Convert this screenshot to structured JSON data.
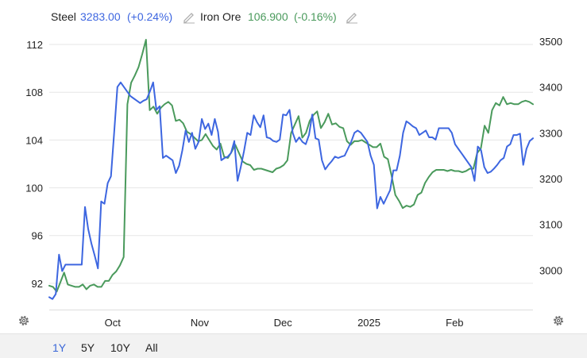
{
  "legend": {
    "steel": {
      "name": "Steel",
      "value": "3283.00",
      "change": "(+0.24%)",
      "color": "#3d66e0"
    },
    "iron_ore": {
      "name": "Iron Ore",
      "value": "106.900",
      "change": "(-0.16%)",
      "color": "#4a9a5c"
    },
    "edit_icon": "pencil-icon"
  },
  "range_buttons": [
    "1Y",
    "5Y",
    "10Y",
    "All"
  ],
  "active_range": "1Y",
  "settings_icon": "gear-icon",
  "chart_data": {
    "type": "line",
    "title": "",
    "xlabel": "",
    "x_ticks": [
      "Oct",
      "Nov",
      "Dec",
      "2025",
      "Feb"
    ],
    "left_axis": {
      "ticks": [
        92,
        96,
        100,
        104,
        108,
        112
      ],
      "range": [
        89.8,
        113.2
      ]
    },
    "right_axis": {
      "ticks": [
        3000,
        3100,
        3200,
        3300,
        3400,
        3500
      ],
      "range": [
        2914,
        3524
      ]
    },
    "grid": true,
    "series": [
      {
        "name": "Steel",
        "axis": "right",
        "color": "#3d66e0",
        "values": [
          2941,
          2937,
          2948,
          3034,
          2998,
          3012,
          3012,
          3012,
          3012,
          3012,
          3012,
          3138,
          3090,
          3058,
          3032,
          3004,
          3150,
          3145,
          3190,
          3205,
          3300,
          3400,
          3410,
          3400,
          3390,
          3380,
          3375,
          3370,
          3365,
          3370,
          3373,
          3390,
          3410,
          3350,
          3358,
          3245,
          3250,
          3245,
          3240,
          3212,
          3228,
          3262,
          3305,
          3280,
          3300,
          3265,
          3280,
          3330,
          3308,
          3320,
          3295,
          3330,
          3302,
          3240,
          3245,
          3248,
          3256,
          3282,
          3195,
          3225,
          3260,
          3300,
          3295,
          3338,
          3323,
          3312,
          3338,
          3290,
          3288,
          3282,
          3280,
          3285,
          3340,
          3338,
          3350,
          3300,
          3280,
          3290,
          3280,
          3275,
          3295,
          3340,
          3288,
          3285,
          3240,
          3220,
          3230,
          3238,
          3248,
          3245,
          3248,
          3250,
          3265,
          3280,
          3300,
          3305,
          3300,
          3290,
          3280,
          3250,
          3230,
          3135,
          3160,
          3145,
          3160,
          3175,
          3218,
          3218,
          3250,
          3300,
          3325,
          3320,
          3314,
          3310,
          3295,
          3300,
          3305,
          3290,
          3290,
          3285,
          3310,
          3310,
          3310,
          3310,
          3300,
          3275,
          3265,
          3255,
          3245,
          3235,
          3225,
          3195,
          3270,
          3262,
          3225,
          3212,
          3215,
          3222,
          3230,
          3240,
          3245,
          3270,
          3275,
          3295,
          3295,
          3298,
          3230,
          3265,
          3282,
          3288
        ]
      },
      {
        "name": "Iron Ore",
        "axis": "left",
        "color": "#4a9a5c",
        "values": [
          91.8,
          91.7,
          91.3,
          92.1,
          92.9,
          91.9,
          91.8,
          91.7,
          91.7,
          91.9,
          91.5,
          91.8,
          91.9,
          91.7,
          91.7,
          92.2,
          92.2,
          92.7,
          93.0,
          93.5,
          94.2,
          107.0,
          108.8,
          109.4,
          110.1,
          111.2,
          112.4,
          106.5,
          106.8,
          106.2,
          106.7,
          107.0,
          107.2,
          106.9,
          105.6,
          105.7,
          105.4,
          104.7,
          104.5,
          104.2,
          103.9,
          104.0,
          104.5,
          104.0,
          103.5,
          103.2,
          103.7,
          102.6,
          102.5,
          103.0,
          103.6,
          102.9,
          102.2,
          102.0,
          101.9,
          101.5,
          101.6,
          101.6,
          101.5,
          101.4,
          101.3,
          101.6,
          101.7,
          101.9,
          102.3,
          104.6,
          105.3,
          106.0,
          104.2,
          104.6,
          105.6,
          106.1,
          106.4,
          105.0,
          105.5,
          106.2,
          105.3,
          105.4,
          105.1,
          105.0,
          103.9,
          103.6,
          103.9,
          103.9,
          104.0,
          103.8,
          103.6,
          103.4,
          103.4,
          103.7,
          102.6,
          102.4,
          101.0,
          99.4,
          98.9,
          98.3,
          98.5,
          98.4,
          98.6,
          99.4,
          99.6,
          100.4,
          100.9,
          101.3,
          101.5,
          101.5,
          101.5,
          101.4,
          101.5,
          101.4,
          101.4,
          101.3,
          101.4,
          101.6,
          101.6,
          102.9,
          103.3,
          105.2,
          104.6,
          106.5,
          107.1,
          106.9,
          107.6,
          107.0,
          107.1,
          107.0,
          107.0,
          107.2,
          107.3,
          107.2,
          107.0
        ]
      }
    ]
  }
}
